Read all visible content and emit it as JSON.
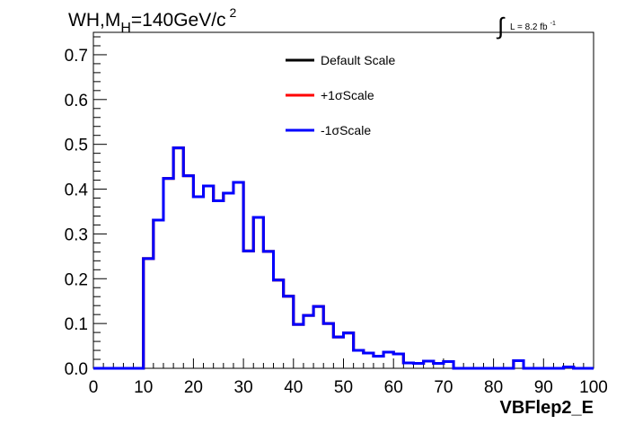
{
  "chart_data": {
    "type": "histogram",
    "title_main": "WH,M",
    "title_sub": "H",
    "title_rest": "=140GeV/c",
    "title_sup": "2",
    "lumi": {
      "integral": "∫",
      "text": "L = 8.2 fb",
      "sup": "-1"
    },
    "xlabel": "VBFlep2_E",
    "ylabel": "",
    "xlim": [
      0,
      100
    ],
    "ylim": [
      0,
      0.75
    ],
    "xticks": [
      "0",
      "10",
      "20",
      "30",
      "40",
      "50",
      "60",
      "70",
      "80",
      "90",
      "100"
    ],
    "yticks": [
      "0.0",
      "0.1",
      "0.2",
      "0.3",
      "0.4",
      "0.5",
      "0.6",
      "0.7"
    ],
    "bin_width": 2,
    "bin_edges_start": 0,
    "series": [
      {
        "name": "Default Scale",
        "color": "#000000",
        "values": [
          0,
          0,
          0,
          0,
          0,
          0.245,
          0.331,
          0.424,
          0.492,
          0.43,
          0.383,
          0.407,
          0.374,
          0.391,
          0.415,
          0.262,
          0.337,
          0.261,
          0.197,
          0.161,
          0.098,
          0.118,
          0.138,
          0.1,
          0.07,
          0.079,
          0.04,
          0.034,
          0.027,
          0.036,
          0.032,
          0.012,
          0.011,
          0.016,
          0.011,
          0.015,
          0,
          0,
          0,
          0,
          0,
          0,
          0.017,
          0,
          0,
          0,
          0,
          0.003,
          0,
          0
        ]
      },
      {
        "name": "+1σScale",
        "color": "#ff0000",
        "values": [
          0,
          0,
          0,
          0,
          0,
          0.245,
          0.331,
          0.424,
          0.492,
          0.43,
          0.383,
          0.407,
          0.374,
          0.391,
          0.415,
          0.262,
          0.337,
          0.261,
          0.197,
          0.161,
          0.098,
          0.118,
          0.138,
          0.1,
          0.07,
          0.079,
          0.04,
          0.034,
          0.027,
          0.036,
          0.032,
          0.012,
          0.011,
          0.016,
          0.011,
          0.015,
          0,
          0,
          0,
          0,
          0,
          0,
          0.017,
          0,
          0,
          0,
          0,
          0.003,
          0,
          0
        ]
      },
      {
        "name": "-1σScale",
        "color": "#0000ff",
        "values": [
          0,
          0,
          0,
          0,
          0,
          0.245,
          0.331,
          0.424,
          0.492,
          0.43,
          0.383,
          0.407,
          0.374,
          0.391,
          0.415,
          0.262,
          0.337,
          0.261,
          0.197,
          0.161,
          0.098,
          0.118,
          0.138,
          0.1,
          0.07,
          0.079,
          0.04,
          0.034,
          0.027,
          0.036,
          0.032,
          0.012,
          0.011,
          0.016,
          0.011,
          0.015,
          0,
          0,
          0,
          0,
          0,
          0,
          0.017,
          0,
          0,
          0,
          0,
          0.003,
          0,
          0
        ]
      }
    ],
    "legend_position": "top-center",
    "grid": false
  }
}
